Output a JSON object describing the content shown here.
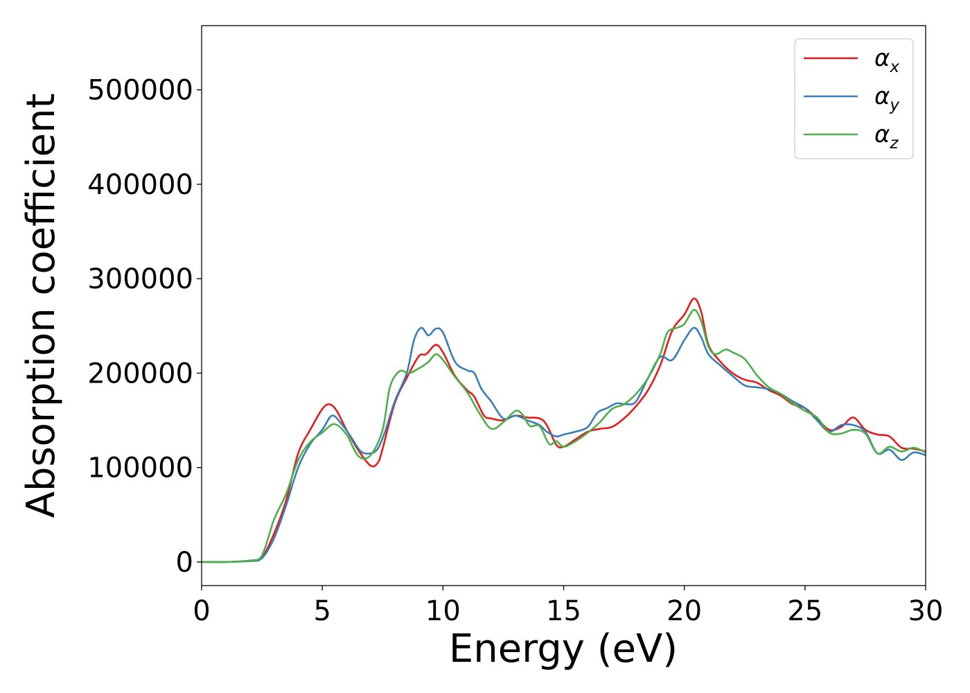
{
  "chart_data": {
    "type": "line",
    "xlabel": "Energy (eV)",
    "ylabel": "Absorption coefficient",
    "xlim": [
      0,
      30
    ],
    "ylim": [
      -25000,
      568000
    ],
    "xticks": [
      "0",
      "5",
      "10",
      "15",
      "20",
      "25",
      "30"
    ],
    "yticks": [
      "0",
      "100000",
      "200000",
      "300000",
      "400000",
      "500000"
    ],
    "grid": false,
    "legend_position": "top-right",
    "colors": {
      "x": "#e41a1c",
      "y": "#377eb8",
      "z": "#4daf4a"
    },
    "series": [
      {
        "name": "α_x",
        "base": "α",
        "sub": "x",
        "color": "#e41a1c",
        "points": [
          [
            0,
            0
          ],
          [
            1,
            0
          ],
          [
            2,
            1500
          ],
          [
            2.5,
            5000
          ],
          [
            3,
            30000
          ],
          [
            3.5,
            65000
          ],
          [
            4,
            115000
          ],
          [
            4.5,
            140000
          ],
          [
            5,
            162000
          ],
          [
            5.3,
            167000
          ],
          [
            5.6,
            160000
          ],
          [
            6,
            140000
          ],
          [
            6.5,
            118000
          ],
          [
            7,
            102000
          ],
          [
            7.3,
            105000
          ],
          [
            7.5,
            120000
          ],
          [
            8,
            168000
          ],
          [
            8.5,
            195000
          ],
          [
            9,
            218000
          ],
          [
            9.3,
            220000
          ],
          [
            9.7,
            230000
          ],
          [
            10,
            222000
          ],
          [
            10.5,
            197000
          ],
          [
            11,
            182000
          ],
          [
            11.3,
            175000
          ],
          [
            11.7,
            155000
          ],
          [
            12,
            152000
          ],
          [
            12.5,
            150000
          ],
          [
            13,
            155000
          ],
          [
            13.5,
            153000
          ],
          [
            14,
            152000
          ],
          [
            14.3,
            145000
          ],
          [
            14.7,
            124000
          ],
          [
            15,
            122000
          ],
          [
            15.5,
            130000
          ],
          [
            16,
            138000
          ],
          [
            16.5,
            141000
          ],
          [
            17,
            143000
          ],
          [
            17.5,
            152000
          ],
          [
            18,
            165000
          ],
          [
            18.5,
            182000
          ],
          [
            19,
            208000
          ],
          [
            19.5,
            245000
          ],
          [
            20,
            262000
          ],
          [
            20.4,
            279000
          ],
          [
            20.7,
            265000
          ],
          [
            21,
            230000
          ],
          [
            21.5,
            212000
          ],
          [
            22,
            200000
          ],
          [
            22.5,
            193000
          ],
          [
            23,
            190000
          ],
          [
            23.5,
            182000
          ],
          [
            24,
            176000
          ],
          [
            24.5,
            167000
          ],
          [
            25,
            163000
          ],
          [
            25.5,
            152000
          ],
          [
            26,
            140000
          ],
          [
            26.5,
            143000
          ],
          [
            27,
            153000
          ],
          [
            27.5,
            140000
          ],
          [
            28,
            135000
          ],
          [
            28.5,
            133000
          ],
          [
            29,
            121000
          ],
          [
            29.5,
            120000
          ],
          [
            30,
            117000
          ]
        ]
      },
      {
        "name": "α_y",
        "base": "α",
        "sub": "y",
        "color": "#377eb8",
        "points": [
          [
            0,
            0
          ],
          [
            1,
            0
          ],
          [
            2,
            1000
          ],
          [
            2.5,
            4000
          ],
          [
            3,
            25000
          ],
          [
            3.5,
            60000
          ],
          [
            4,
            100000
          ],
          [
            4.5,
            125000
          ],
          [
            5,
            140000
          ],
          [
            5.4,
            155000
          ],
          [
            5.8,
            146000
          ],
          [
            6.2,
            132000
          ],
          [
            6.6,
            117000
          ],
          [
            7,
            115000
          ],
          [
            7.3,
            120000
          ],
          [
            7.6,
            138000
          ],
          [
            8,
            170000
          ],
          [
            8.5,
            200000
          ],
          [
            8.8,
            235000
          ],
          [
            9.1,
            248000
          ],
          [
            9.4,
            240000
          ],
          [
            9.7,
            247000
          ],
          [
            10,
            243000
          ],
          [
            10.5,
            212000
          ],
          [
            11,
            203000
          ],
          [
            11.3,
            200000
          ],
          [
            11.6,
            183000
          ],
          [
            12,
            170000
          ],
          [
            12.5,
            152000
          ],
          [
            13,
            155000
          ],
          [
            13.5,
            150000
          ],
          [
            14,
            145000
          ],
          [
            14.3,
            138000
          ],
          [
            14.7,
            133000
          ],
          [
            15,
            135000
          ],
          [
            15.5,
            138000
          ],
          [
            16,
            143000
          ],
          [
            16.4,
            158000
          ],
          [
            16.8,
            163000
          ],
          [
            17.2,
            168000
          ],
          [
            17.6,
            167000
          ],
          [
            18,
            170000
          ],
          [
            18.5,
            195000
          ],
          [
            19,
            217000
          ],
          [
            19.5,
            214000
          ],
          [
            20,
            235000
          ],
          [
            20.4,
            248000
          ],
          [
            20.7,
            238000
          ],
          [
            21,
            220000
          ],
          [
            21.5,
            208000
          ],
          [
            22,
            197000
          ],
          [
            22.5,
            187000
          ],
          [
            23,
            185000
          ],
          [
            23.5,
            183000
          ],
          [
            24,
            178000
          ],
          [
            24.5,
            170000
          ],
          [
            25,
            163000
          ],
          [
            25.5,
            150000
          ],
          [
            26,
            138000
          ],
          [
            26.5,
            145000
          ],
          [
            27,
            145000
          ],
          [
            27.5,
            138000
          ],
          [
            28,
            115000
          ],
          [
            28.5,
            119000
          ],
          [
            29,
            108000
          ],
          [
            29.5,
            116000
          ],
          [
            30,
            113000
          ]
        ]
      },
      {
        "name": "α_z",
        "base": "α",
        "sub": "z",
        "color": "#4daf4a",
        "points": [
          [
            0,
            0
          ],
          [
            1,
            0
          ],
          [
            2,
            1500
          ],
          [
            2.5,
            7000
          ],
          [
            3,
            45000
          ],
          [
            3.5,
            72000
          ],
          [
            4,
            108000
          ],
          [
            4.5,
            127000
          ],
          [
            5,
            137000
          ],
          [
            5.5,
            146000
          ],
          [
            6,
            135000
          ],
          [
            6.5,
            112000
          ],
          [
            7,
            113000
          ],
          [
            7.5,
            140000
          ],
          [
            7.8,
            185000
          ],
          [
            8.2,
            202000
          ],
          [
            8.6,
            200000
          ],
          [
            9,
            205000
          ],
          [
            9.4,
            212000
          ],
          [
            9.7,
            220000
          ],
          [
            10,
            214000
          ],
          [
            10.5,
            196000
          ],
          [
            11,
            180000
          ],
          [
            11.5,
            158000
          ],
          [
            12,
            141000
          ],
          [
            12.5,
            148000
          ],
          [
            13,
            160000
          ],
          [
            13.3,
            156000
          ],
          [
            13.6,
            144000
          ],
          [
            14,
            144000
          ],
          [
            14.4,
            125000
          ],
          [
            14.7,
            128000
          ],
          [
            15,
            122000
          ],
          [
            15.5,
            128000
          ],
          [
            16,
            137000
          ],
          [
            16.5,
            148000
          ],
          [
            17,
            162000
          ],
          [
            17.5,
            167000
          ],
          [
            18,
            178000
          ],
          [
            18.5,
            195000
          ],
          [
            19,
            220000
          ],
          [
            19.3,
            243000
          ],
          [
            19.7,
            248000
          ],
          [
            20,
            252000
          ],
          [
            20.4,
            267000
          ],
          [
            20.7,
            255000
          ],
          [
            21,
            228000
          ],
          [
            21.3,
            220000
          ],
          [
            21.7,
            225000
          ],
          [
            22,
            222000
          ],
          [
            22.5,
            215000
          ],
          [
            23,
            198000
          ],
          [
            23.5,
            185000
          ],
          [
            24,
            178000
          ],
          [
            24.5,
            168000
          ],
          [
            25,
            160000
          ],
          [
            25.5,
            153000
          ],
          [
            26,
            137000
          ],
          [
            26.5,
            136000
          ],
          [
            27,
            140000
          ],
          [
            27.5,
            136000
          ],
          [
            28,
            115000
          ],
          [
            28.5,
            122000
          ],
          [
            29,
            117000
          ],
          [
            29.5,
            121000
          ],
          [
            30,
            116000
          ]
        ]
      }
    ]
  }
}
